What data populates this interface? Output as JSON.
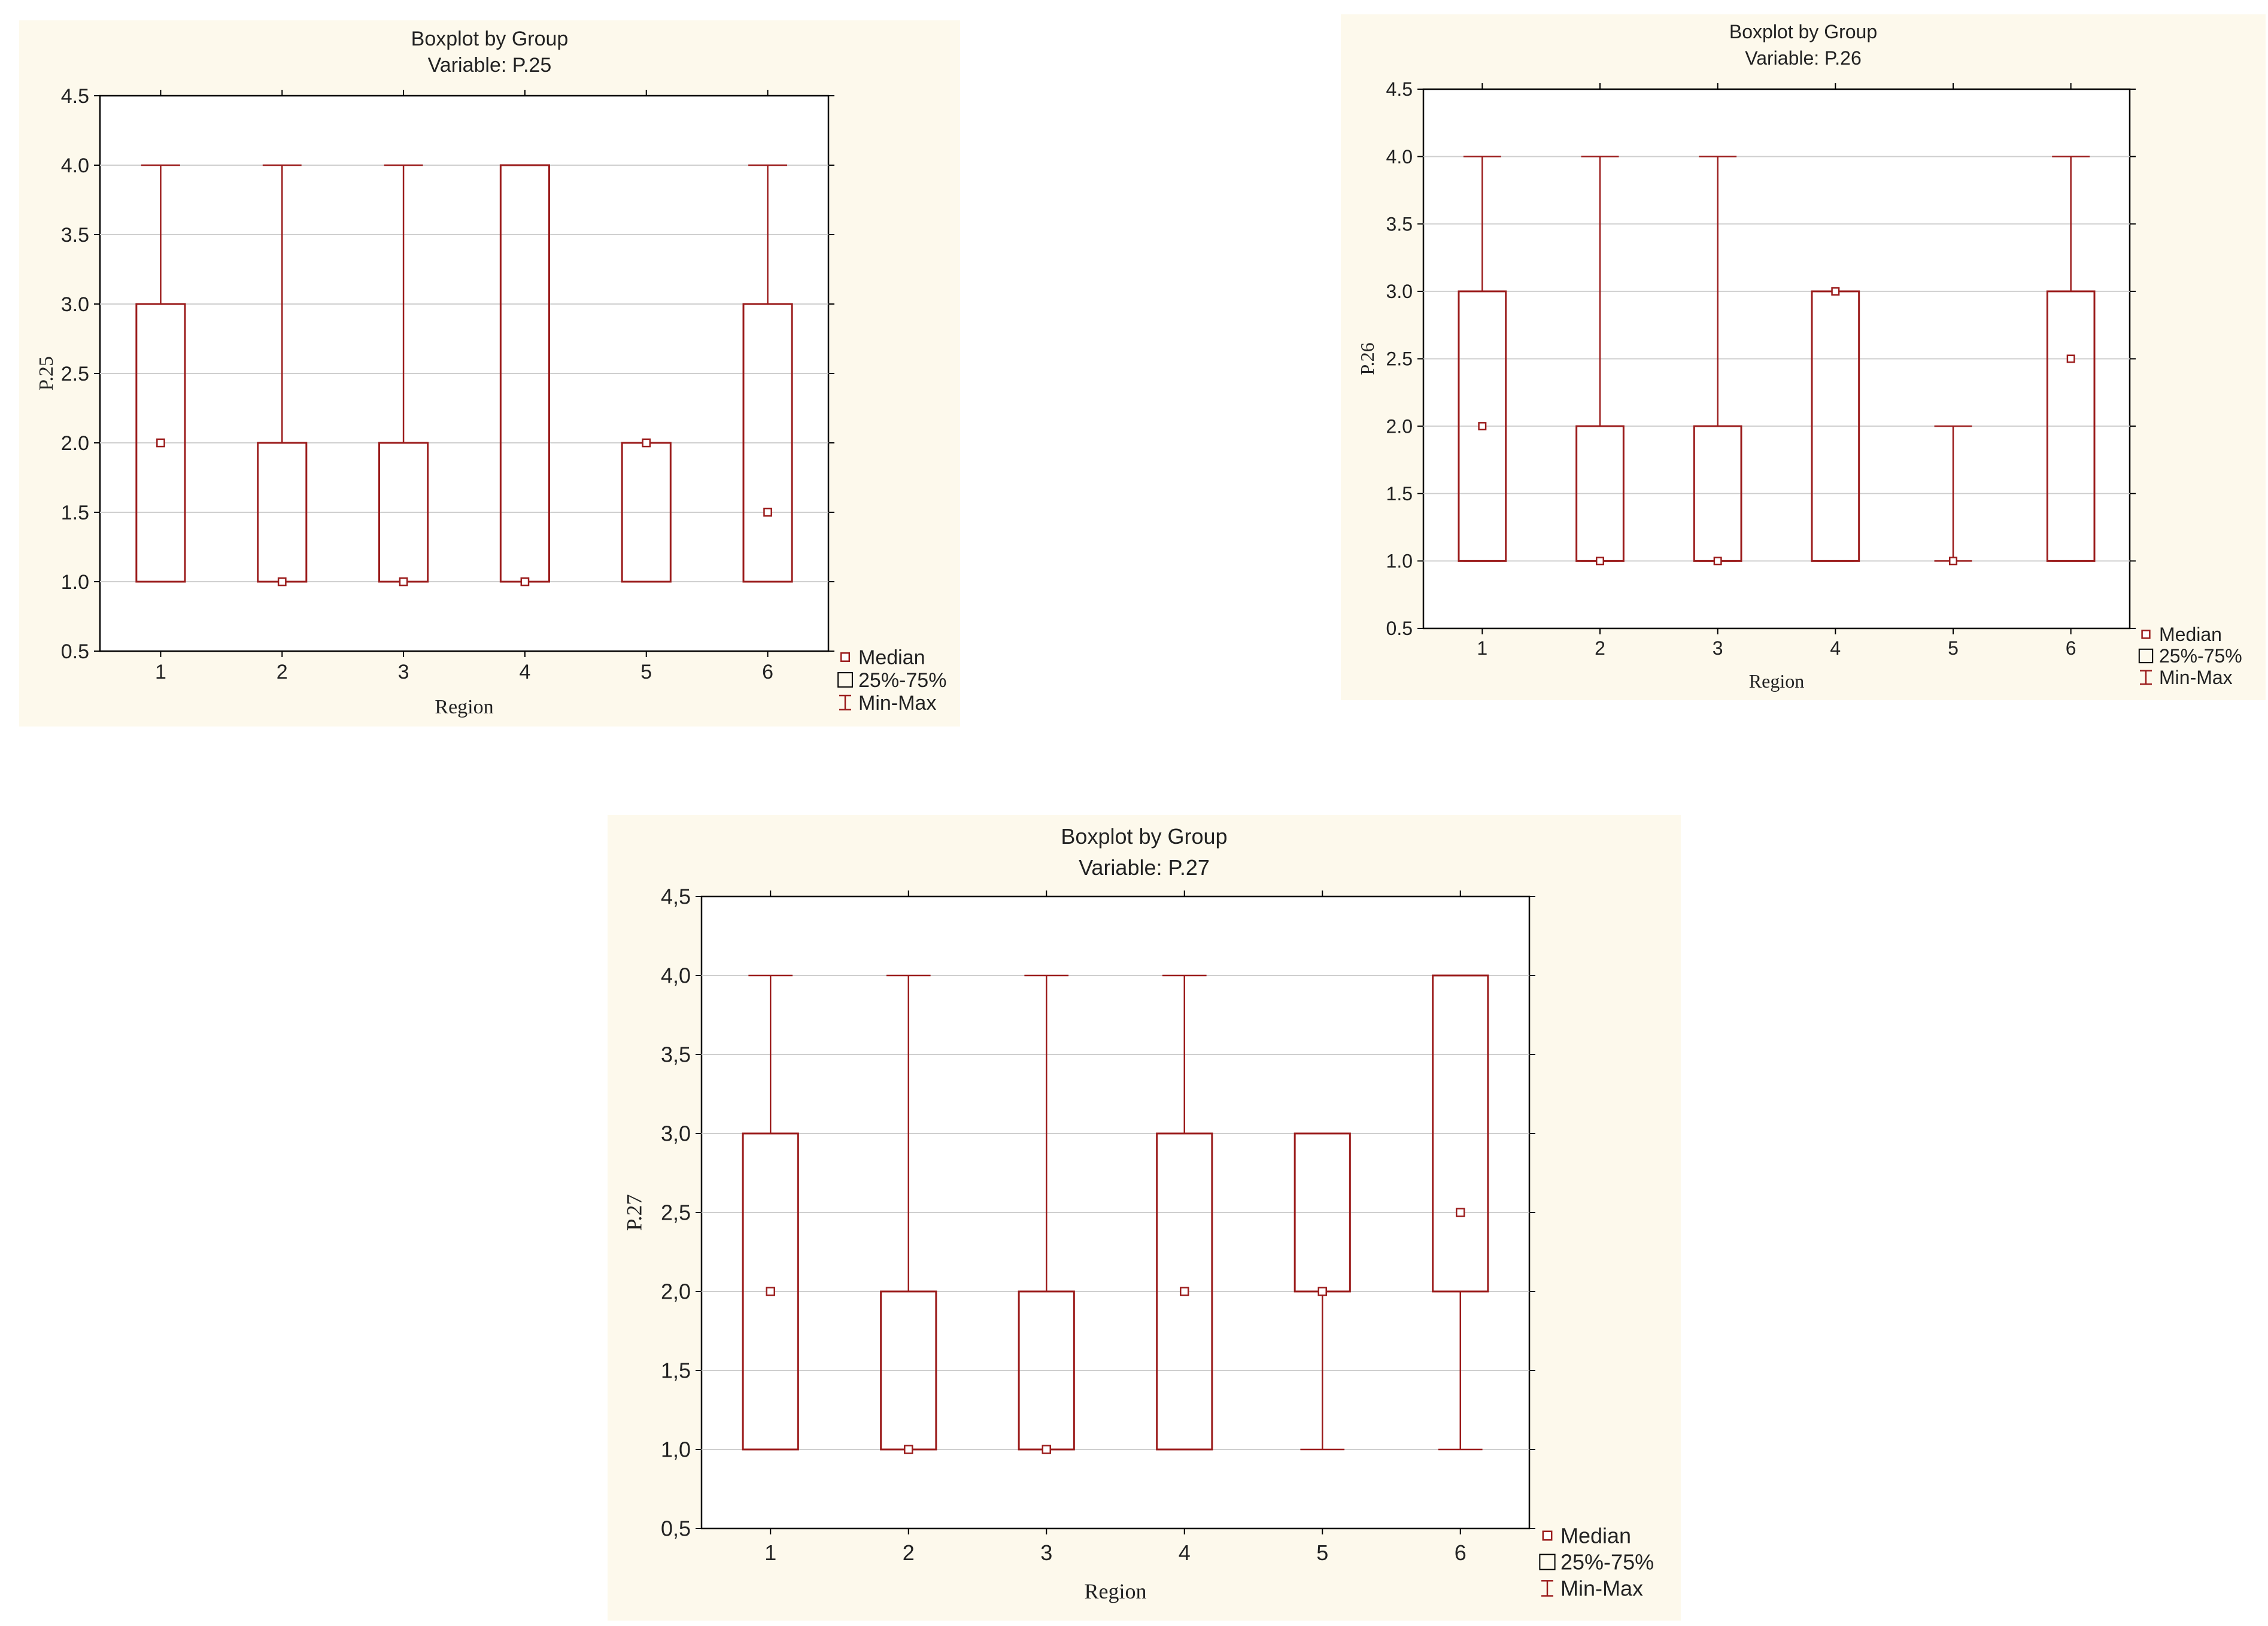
{
  "chart_data": [
    {
      "type": "boxplot",
      "title": "Boxplot by Group",
      "subtitle": "Variable: P.25",
      "xlabel": "Region",
      "ylabel": "P.25",
      "categories": [
        "1",
        "2",
        "3",
        "4",
        "5",
        "6"
      ],
      "ylim": [
        0.5,
        4.5
      ],
      "yticks": [
        "0.5",
        "1.0",
        "1.5",
        "2.0",
        "2.5",
        "3.0",
        "3.5",
        "4.0",
        "4.5"
      ],
      "grid": true,
      "legend": [
        "Median",
        "25%-75%",
        "Min-Max"
      ],
      "legend_position": "bottom-right",
      "color": "#9b1c1c",
      "boxes": [
        {
          "min": 1.0,
          "q1": 1.0,
          "median": 2.0,
          "q3": 3.0,
          "max": 4.0
        },
        {
          "min": 1.0,
          "q1": 1.0,
          "median": 1.0,
          "q3": 2.0,
          "max": 4.0
        },
        {
          "min": 1.0,
          "q1": 1.0,
          "median": 1.0,
          "q3": 2.0,
          "max": 4.0
        },
        {
          "min": 1.0,
          "q1": 1.0,
          "median": 1.0,
          "q3": 4.0,
          "max": 4.0
        },
        {
          "min": 1.0,
          "q1": 1.0,
          "median": 2.0,
          "q3": 2.0,
          "max": 2.0
        },
        {
          "min": 1.0,
          "q1": 1.0,
          "median": 1.5,
          "q3": 3.0,
          "max": 4.0
        }
      ]
    },
    {
      "type": "boxplot",
      "title": "Boxplot by Group",
      "subtitle": "Variable: P.26",
      "xlabel": "Region",
      "ylabel": "P.26",
      "categories": [
        "1",
        "2",
        "3",
        "4",
        "5",
        "6"
      ],
      "ylim": [
        0.5,
        4.5
      ],
      "yticks": [
        "0.5",
        "1.0",
        "1.5",
        "2.0",
        "2.5",
        "3.0",
        "3.5",
        "4.0",
        "4.5"
      ],
      "grid": true,
      "legend": [
        "Median",
        "25%-75%",
        "Min-Max"
      ],
      "legend_position": "bottom-right",
      "color": "#9b1c1c",
      "boxes": [
        {
          "min": 1.0,
          "q1": 1.0,
          "median": 2.0,
          "q3": 3.0,
          "max": 4.0
        },
        {
          "min": 1.0,
          "q1": 1.0,
          "median": 1.0,
          "q3": 2.0,
          "max": 4.0
        },
        {
          "min": 1.0,
          "q1": 1.0,
          "median": 1.0,
          "q3": 2.0,
          "max": 4.0
        },
        {
          "min": 1.0,
          "q1": 1.0,
          "median": 3.0,
          "q3": 3.0,
          "max": 3.0
        },
        {
          "min": 1.0,
          "q1": 1.0,
          "median": 1.0,
          "q3": 1.0,
          "max": 2.0
        },
        {
          "min": 1.0,
          "q1": 1.0,
          "median": 2.5,
          "q3": 3.0,
          "max": 4.0
        }
      ]
    },
    {
      "type": "boxplot",
      "title": "Boxplot by Group",
      "subtitle": "Variable: P.27",
      "xlabel": "Region",
      "ylabel": "P.27",
      "categories": [
        "1",
        "2",
        "3",
        "4",
        "5",
        "6"
      ],
      "ylim": [
        0.5,
        4.5
      ],
      "yticks": [
        "0,5",
        "1,0",
        "1,5",
        "2,0",
        "2,5",
        "3,0",
        "3,5",
        "4,0",
        "4,5"
      ],
      "grid": true,
      "legend": [
        "Median",
        "25%-75%",
        "Min-Max"
      ],
      "legend_position": "bottom-right",
      "color": "#9b1c1c",
      "boxes": [
        {
          "min": 1.0,
          "q1": 1.0,
          "median": 2.0,
          "q3": 3.0,
          "max": 4.0
        },
        {
          "min": 1.0,
          "q1": 1.0,
          "median": 1.0,
          "q3": 2.0,
          "max": 4.0
        },
        {
          "min": 1.0,
          "q1": 1.0,
          "median": 1.0,
          "q3": 2.0,
          "max": 4.0
        },
        {
          "min": 1.0,
          "q1": 1.0,
          "median": 2.0,
          "q3": 3.0,
          "max": 4.0
        },
        {
          "min": 1.0,
          "q1": 2.0,
          "median": 2.0,
          "q3": 3.0,
          "max": 3.0
        },
        {
          "min": 1.0,
          "q1": 2.0,
          "median": 2.5,
          "q3": 4.0,
          "max": 4.0
        }
      ]
    }
  ]
}
